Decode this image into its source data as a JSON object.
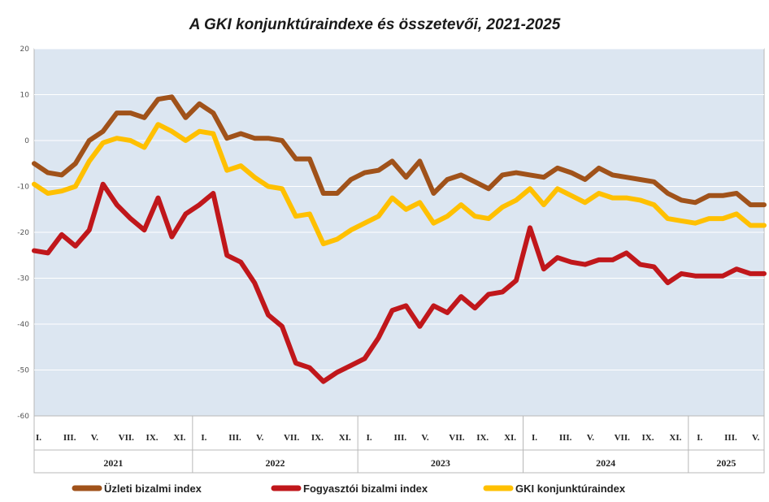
{
  "chart_data": {
    "type": "line",
    "title": "A GKI konjunktúraindexe és összetevői, 2021-2025",
    "ylim": [
      -60,
      20
    ],
    "yticks": [
      20,
      10,
      0,
      -10,
      -20,
      -30,
      -40,
      -50,
      -60
    ],
    "grid": "horizontal",
    "legend_position": "bottom",
    "years": [
      "2021",
      "2022",
      "2023",
      "2024",
      "2025"
    ],
    "month_labels": [
      "I.",
      "III.",
      "V.",
      "VII.",
      "IX.",
      "XI."
    ],
    "x_count": 54,
    "series": [
      {
        "name": "Üzleti bizalmi index",
        "color": "#A0521A",
        "values": [
          -5,
          -7,
          -7.5,
          -5,
          0,
          2,
          6,
          6,
          5,
          9,
          9.5,
          5,
          8,
          6,
          0.5,
          1.5,
          0.5,
          0.5,
          0,
          -4,
          -4,
          -11.5,
          -11.5,
          -8.5,
          -7,
          -6.5,
          -4.5,
          -8,
          -4.5,
          -11.5,
          -8.5,
          -7.5,
          -9,
          -10.5,
          -7.5,
          -7,
          -7.5,
          -8,
          -6,
          -7,
          -8.5,
          -6,
          -7.5,
          -8,
          -8.5,
          -9,
          -11.5,
          -13,
          -13.5,
          -12,
          -12,
          -11.5,
          -14,
          -14
        ]
      },
      {
        "name": "Fogyasztói bizalmi index",
        "color": "#C0171B",
        "values": [
          -24,
          -24.5,
          -20.5,
          -23,
          -19.5,
          -9.5,
          -14,
          -17,
          -19.5,
          -12.5,
          -21,
          -16,
          -14,
          -11.5,
          -25,
          -26.5,
          -31,
          -38,
          -40.5,
          -48.5,
          -49.5,
          -52.5,
          -50.5,
          -49,
          -47.5,
          -43,
          -37,
          -36,
          -40.5,
          -36,
          -37.5,
          -34,
          -36.5,
          -33.5,
          -33,
          -30.5,
          -19,
          -28,
          -25.5,
          -26.5,
          -27,
          -26,
          -26,
          -24.5,
          -27,
          -27.5,
          -31,
          -29,
          -29.5,
          -29.5,
          -29.5,
          -28,
          -29,
          -29
        ]
      },
      {
        "name": "GKI konjunktúraindex",
        "color": "#FFC000",
        "values": [
          -9.5,
          -11.5,
          -11,
          -10,
          -4.5,
          -0.5,
          0.5,
          0,
          -1.5,
          3.5,
          2,
          0,
          2,
          1.5,
          -6.5,
          -5.5,
          -8,
          -10,
          -10.5,
          -16.5,
          -16,
          -22.5,
          -21.5,
          -19.5,
          -18,
          -16.5,
          -12.5,
          -15,
          -13.5,
          -18,
          -16.5,
          -14,
          -16.5,
          -17,
          -14.5,
          -13,
          -10.5,
          -14,
          -10.5,
          -12,
          -13.5,
          -11.5,
          -12.5,
          -12.5,
          -13,
          -14,
          -17,
          -17.5,
          -18,
          -17,
          -17,
          -16,
          -18.5,
          -18.5
        ]
      }
    ]
  }
}
